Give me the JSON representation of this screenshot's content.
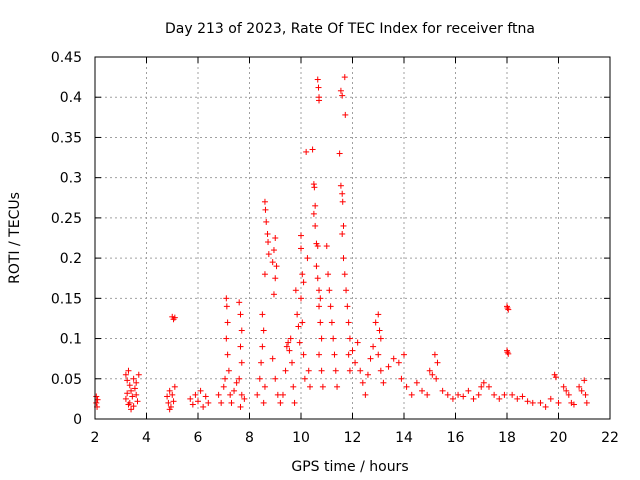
{
  "chart_data": {
    "type": "scatter",
    "title": "Day 213 of 2023, Rate Of TEC Index for receiver ftna",
    "xlabel": "GPS time / hours",
    "ylabel": "ROTI / TECUs",
    "xlim": [
      2,
      22
    ],
    "ylim": [
      0,
      0.45
    ],
    "x_ticks": [
      2,
      4,
      6,
      8,
      10,
      12,
      14,
      16,
      18,
      20,
      22
    ],
    "y_ticks": [
      0,
      0.05,
      0.1,
      0.15,
      0.2,
      0.25,
      0.3,
      0.35,
      0.4,
      0.45
    ],
    "y_tick_labels": [
      "0",
      "0.05",
      "0.1",
      "0.15",
      "0.2",
      "0.25",
      "0.3",
      "0.35",
      "0.4",
      "0.45"
    ],
    "grid": true,
    "marker": "+",
    "color": "#ff0000",
    "series": [
      {
        "name": "ROTI",
        "points": [
          [
            2.05,
            0.028
          ],
          [
            2.05,
            0.02
          ],
          [
            2.08,
            0.015
          ],
          [
            2.1,
            0.024
          ],
          [
            3.2,
            0.055
          ],
          [
            3.25,
            0.048
          ],
          [
            3.3,
            0.06
          ],
          [
            3.35,
            0.042
          ],
          [
            3.4,
            0.035
          ],
          [
            3.45,
            0.028
          ],
          [
            3.5,
            0.05
          ],
          [
            3.55,
            0.038
          ],
          [
            3.6,
            0.03
          ],
          [
            3.65,
            0.022
          ],
          [
            3.3,
            0.018
          ],
          [
            3.4,
            0.012
          ],
          [
            3.5,
            0.016
          ],
          [
            3.2,
            0.025
          ],
          [
            3.6,
            0.045
          ],
          [
            3.7,
            0.055
          ],
          [
            3.25,
            0.032
          ],
          [
            3.35,
            0.02
          ],
          [
            4.8,
            0.028
          ],
          [
            4.85,
            0.02
          ],
          [
            4.9,
            0.035
          ],
          [
            4.95,
            0.015
          ],
          [
            5.0,
            0.03
          ],
          [
            5.05,
            0.022
          ],
          [
            5.1,
            0.04
          ],
          [
            4.9,
            0.012
          ],
          [
            5.0,
            0.127
          ],
          [
            5.05,
            0.124
          ],
          [
            5.1,
            0.126
          ],
          [
            5.7,
            0.025
          ],
          [
            5.8,
            0.018
          ],
          [
            5.9,
            0.03
          ],
          [
            6.0,
            0.022
          ],
          [
            6.1,
            0.035
          ],
          [
            6.2,
            0.015
          ],
          [
            6.3,
            0.028
          ],
          [
            6.4,
            0.02
          ],
          [
            6.8,
            0.03
          ],
          [
            6.9,
            0.02
          ],
          [
            7.0,
            0.04
          ],
          [
            7.05,
            0.05
          ],
          [
            7.1,
            0.15
          ],
          [
            7.12,
            0.14
          ],
          [
            7.15,
            0.12
          ],
          [
            7.1,
            0.1
          ],
          [
            7.15,
            0.08
          ],
          [
            7.2,
            0.06
          ],
          [
            7.25,
            0.03
          ],
          [
            7.3,
            0.02
          ],
          [
            7.4,
            0.035
          ],
          [
            7.5,
            0.045
          ],
          [
            7.6,
            0.145
          ],
          [
            7.65,
            0.13
          ],
          [
            7.7,
            0.11
          ],
          [
            7.65,
            0.09
          ],
          [
            7.7,
            0.07
          ],
          [
            7.6,
            0.05
          ],
          [
            7.7,
            0.03
          ],
          [
            7.65,
            0.015
          ],
          [
            7.8,
            0.025
          ],
          [
            8.3,
            0.03
          ],
          [
            8.4,
            0.05
          ],
          [
            8.45,
            0.07
          ],
          [
            8.5,
            0.09
          ],
          [
            8.55,
            0.11
          ],
          [
            8.5,
            0.13
          ],
          [
            8.55,
            0.02
          ],
          [
            8.6,
            0.04
          ],
          [
            8.6,
            0.27
          ],
          [
            8.62,
            0.26
          ],
          [
            8.65,
            0.245
          ],
          [
            8.7,
            0.23
          ],
          [
            8.72,
            0.22
          ],
          [
            8.75,
            0.205
          ],
          [
            8.6,
            0.18
          ],
          [
            8.9,
            0.195
          ],
          [
            8.95,
            0.21
          ],
          [
            9.0,
            0.225
          ],
          [
            9.05,
            0.19
          ],
          [
            9.0,
            0.175
          ],
          [
            8.95,
            0.155
          ],
          [
            8.9,
            0.075
          ],
          [
            9.0,
            0.05
          ],
          [
            9.1,
            0.03
          ],
          [
            9.2,
            0.02
          ],
          [
            9.3,
            0.03
          ],
          [
            9.4,
            0.06
          ],
          [
            9.45,
            0.09
          ],
          [
            9.5,
            0.095
          ],
          [
            9.55,
            0.085
          ],
          [
            9.6,
            0.1
          ],
          [
            9.65,
            0.07
          ],
          [
            9.7,
            0.04
          ],
          [
            9.75,
            0.02
          ],
          [
            9.8,
            0.16
          ],
          [
            9.85,
            0.13
          ],
          [
            9.9,
            0.115
          ],
          [
            9.95,
            0.095
          ],
          [
            10.0,
            0.228
          ],
          [
            10.0,
            0.212
          ],
          [
            10.05,
            0.18
          ],
          [
            10.1,
            0.17
          ],
          [
            10.0,
            0.15
          ],
          [
            10.05,
            0.12
          ],
          [
            10.1,
            0.08
          ],
          [
            10.15,
            0.05
          ],
          [
            10.2,
            0.332
          ],
          [
            10.25,
            0.2
          ],
          [
            10.3,
            0.06
          ],
          [
            10.35,
            0.04
          ],
          [
            10.45,
            0.335
          ],
          [
            10.5,
            0.292
          ],
          [
            10.52,
            0.288
          ],
          [
            10.55,
            0.265
          ],
          [
            10.5,
            0.255
          ],
          [
            10.55,
            0.24
          ],
          [
            10.6,
            0.218
          ],
          [
            10.65,
            0.215
          ],
          [
            10.6,
            0.19
          ],
          [
            10.65,
            0.175
          ],
          [
            10.7,
            0.16
          ],
          [
            10.75,
            0.15
          ],
          [
            10.7,
            0.14
          ],
          [
            10.75,
            0.12
          ],
          [
            10.8,
            0.1
          ],
          [
            10.7,
            0.08
          ],
          [
            10.8,
            0.06
          ],
          [
            10.85,
            0.04
          ],
          [
            10.65,
            0.422
          ],
          [
            10.68,
            0.412
          ],
          [
            10.7,
            0.4
          ],
          [
            10.7,
            0.396
          ],
          [
            11.0,
            0.215
          ],
          [
            11.05,
            0.18
          ],
          [
            11.1,
            0.16
          ],
          [
            11.15,
            0.14
          ],
          [
            11.2,
            0.12
          ],
          [
            11.25,
            0.1
          ],
          [
            11.3,
            0.08
          ],
          [
            11.35,
            0.06
          ],
          [
            11.4,
            0.04
          ],
          [
            11.5,
            0.33
          ],
          [
            11.55,
            0.29
          ],
          [
            11.6,
            0.28
          ],
          [
            11.62,
            0.27
          ],
          [
            11.65,
            0.24
          ],
          [
            11.6,
            0.23
          ],
          [
            11.65,
            0.2
          ],
          [
            11.7,
            0.18
          ],
          [
            11.75,
            0.16
          ],
          [
            11.8,
            0.14
          ],
          [
            11.85,
            0.12
          ],
          [
            11.9,
            0.1
          ],
          [
            11.85,
            0.08
          ],
          [
            11.9,
            0.06
          ],
          [
            11.55,
            0.408
          ],
          [
            11.6,
            0.402
          ],
          [
            11.7,
            0.425
          ],
          [
            11.72,
            0.378
          ],
          [
            12.0,
            0.085
          ],
          [
            12.1,
            0.07
          ],
          [
            12.2,
            0.095
          ],
          [
            12.3,
            0.06
          ],
          [
            12.4,
            0.045
          ],
          [
            12.5,
            0.03
          ],
          [
            12.6,
            0.055
          ],
          [
            12.7,
            0.075
          ],
          [
            12.8,
            0.09
          ],
          [
            12.9,
            0.12
          ],
          [
            13.0,
            0.13
          ],
          [
            13.05,
            0.11
          ],
          [
            13.1,
            0.1
          ],
          [
            13.0,
            0.08
          ],
          [
            13.1,
            0.06
          ],
          [
            13.2,
            0.045
          ],
          [
            13.4,
            0.065
          ],
          [
            13.6,
            0.075
          ],
          [
            13.8,
            0.07
          ],
          [
            14.0,
            0.08
          ],
          [
            13.9,
            0.05
          ],
          [
            14.1,
            0.04
          ],
          [
            14.3,
            0.03
          ],
          [
            14.5,
            0.045
          ],
          [
            14.7,
            0.035
          ],
          [
            14.9,
            0.03
          ],
          [
            15.0,
            0.06
          ],
          [
            15.1,
            0.055
          ],
          [
            15.2,
            0.08
          ],
          [
            15.3,
            0.07
          ],
          [
            15.25,
            0.05
          ],
          [
            15.5,
            0.035
          ],
          [
            15.7,
            0.03
          ],
          [
            15.9,
            0.025
          ],
          [
            16.1,
            0.03
          ],
          [
            16.3,
            0.028
          ],
          [
            16.5,
            0.035
          ],
          [
            16.7,
            0.025
          ],
          [
            16.9,
            0.03
          ],
          [
            17.0,
            0.04
          ],
          [
            17.1,
            0.045
          ],
          [
            17.3,
            0.04
          ],
          [
            17.5,
            0.03
          ],
          [
            17.7,
            0.025
          ],
          [
            17.9,
            0.03
          ],
          [
            18.0,
            0.14
          ],
          [
            18.02,
            0.138
          ],
          [
            18.05,
            0.136
          ],
          [
            18.0,
            0.085
          ],
          [
            18.02,
            0.083
          ],
          [
            18.05,
            0.081
          ],
          [
            18.2,
            0.03
          ],
          [
            18.4,
            0.025
          ],
          [
            18.6,
            0.028
          ],
          [
            18.8,
            0.022
          ],
          [
            19.0,
            0.02
          ],
          [
            19.3,
            0.02
          ],
          [
            19.5,
            0.015
          ],
          [
            19.7,
            0.025
          ],
          [
            19.85,
            0.055
          ],
          [
            19.9,
            0.052
          ],
          [
            20.0,
            0.02
          ],
          [
            20.2,
            0.04
          ],
          [
            20.3,
            0.035
          ],
          [
            20.4,
            0.03
          ],
          [
            20.5,
            0.02
          ],
          [
            20.6,
            0.018
          ],
          [
            20.8,
            0.04
          ],
          [
            20.9,
            0.035
          ],
          [
            21.0,
            0.048
          ],
          [
            21.05,
            0.03
          ],
          [
            21.1,
            0.02
          ]
        ]
      }
    ]
  }
}
